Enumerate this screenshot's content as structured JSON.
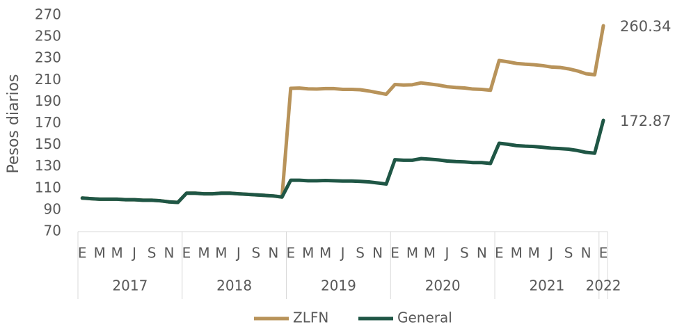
{
  "chart_data": {
    "type": "line",
    "y_label": "Pesos diarios",
    "categories": [
      "E",
      null,
      "M",
      null,
      "M",
      null,
      "J",
      null,
      "S",
      null,
      "N",
      null,
      "E",
      null,
      "M",
      null,
      "M",
      null,
      "J",
      null,
      "S",
      null,
      "N",
      null,
      "E",
      null,
      "M",
      null,
      "M",
      null,
      "J",
      null,
      "S",
      null,
      "N",
      null,
      "E",
      null,
      "M",
      null,
      "M",
      null,
      "J",
      null,
      "S",
      null,
      "N",
      null,
      "E",
      null,
      "M",
      null,
      "M",
      null,
      "J",
      null,
      "S",
      null,
      "N",
      null,
      "E"
    ],
    "groups": [
      "2017",
      "2018",
      "2019",
      "2020",
      "2021",
      "2022"
    ],
    "series": [
      {
        "name": "ZLFN",
        "color": "#b8935a",
        "values": [
          101,
          100.5,
          100,
          100,
          100,
          99.5,
          99.5,
          99,
          99,
          98.5,
          97.5,
          97,
          105.5,
          105.5,
          105,
          105,
          105.5,
          105.5,
          105,
          104.5,
          104,
          103.5,
          103,
          102,
          202.5,
          202.7,
          202,
          201.8,
          202.2,
          202.2,
          201.5,
          201.5,
          201.2,
          200,
          198.5,
          197,
          206,
          205.5,
          205.8,
          207.5,
          206.5,
          205.5,
          204,
          203.3,
          202.8,
          201.8,
          201.5,
          200.7,
          228.2,
          227,
          225.5,
          224.8,
          224.3,
          223.5,
          222.2,
          221.8,
          220.5,
          218.6,
          216,
          215,
          260.34
        ]
      },
      {
        "name": "General",
        "color": "#1f5645",
        "values": [
          101,
          100.5,
          100,
          100,
          100,
          99.5,
          99.5,
          99,
          99,
          98.5,
          97.5,
          97,
          105.5,
          105.5,
          105,
          105,
          105.5,
          105.5,
          105,
          104.5,
          104,
          103.5,
          103,
          102,
          117.5,
          117.5,
          117,
          117,
          117.3,
          117,
          116.8,
          116.8,
          116.5,
          116,
          115,
          114,
          136.5,
          136,
          136,
          137.5,
          137,
          136.3,
          135.3,
          134.8,
          134.5,
          133.8,
          133.8,
          133,
          151.7,
          150.8,
          149.5,
          149,
          148.7,
          148,
          147.2,
          146.8,
          146.2,
          145,
          143.3,
          142.5,
          172.87
        ]
      }
    ],
    "ylim": [
      70,
      270
    ],
    "yticks": [
      70,
      90,
      110,
      130,
      150,
      170,
      190,
      210,
      230,
      250,
      270
    ],
    "grid": false,
    "legend": "bottom"
  }
}
